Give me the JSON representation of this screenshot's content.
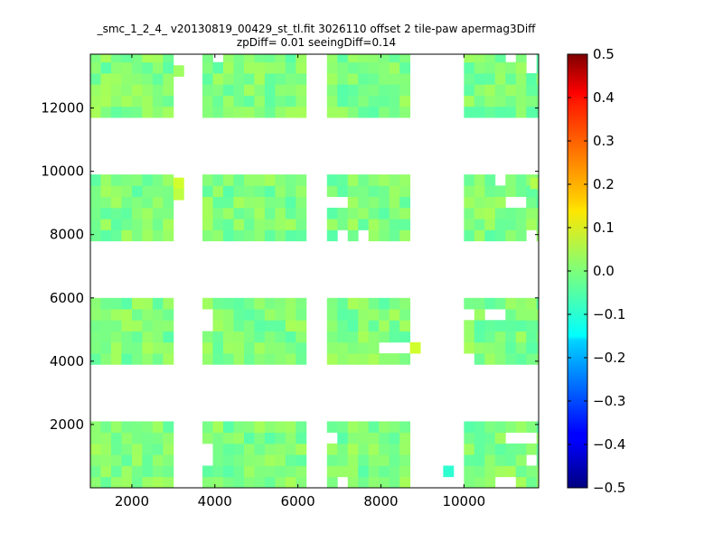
{
  "chart_data": {
    "type": "heatmap",
    "title_line1": "_smc_1_2_4_ v20130819_00429_st_tl.fit 3026110 offset 2 tile-paw apermag3Diff",
    "title_line2": "zpDiff= 0.01 seeingDiff=0.14",
    "xlabel": "",
    "ylabel": "",
    "xlim": [
      1000,
      11800
    ],
    "ylim": [
      0,
      13700
    ],
    "x_ticks": [
      2000,
      4000,
      6000,
      8000,
      10000
    ],
    "y_ticks": [
      2000,
      4000,
      6000,
      8000,
      10000,
      12000
    ],
    "colorbar": {
      "colormap": "jet",
      "range": [
        -0.5,
        0.5
      ],
      "ticks": [
        0.5,
        0.4,
        0.3,
        0.2,
        0.1,
        0.0,
        -0.1,
        -0.2,
        -0.3,
        -0.4,
        -0.5
      ],
      "tick_labels": [
        "0.5",
        "0.4",
        "0.3",
        "0.2",
        "0.1",
        "0.0",
        "−0.1",
        "−0.2",
        "−0.3",
        "−0.4",
        "−0.5"
      ]
    },
    "grid": false,
    "legend": "none",
    "cell_size": [
      250,
      350
    ],
    "blocks": [
      {
        "x": [
          1000,
          3000
        ],
        "y": [
          0,
          2100
        ]
      },
      {
        "x": [
          3700,
          6000
        ],
        "y": [
          0,
          2100
        ]
      },
      {
        "x": [
          6700,
          8700
        ],
        "y": [
          0,
          2100
        ]
      },
      {
        "x": [
          10000,
          11800
        ],
        "y": [
          0,
          2100
        ]
      },
      {
        "x": [
          1000,
          3000
        ],
        "y": [
          3900,
          6000
        ]
      },
      {
        "x": [
          3700,
          6000
        ],
        "y": [
          3900,
          6000
        ]
      },
      {
        "x": [
          6700,
          8700
        ],
        "y": [
          3900,
          6000
        ]
      },
      {
        "x": [
          10000,
          11800
        ],
        "y": [
          3900,
          6000
        ]
      },
      {
        "x": [
          1000,
          3000
        ],
        "y": [
          7800,
          9900
        ]
      },
      {
        "x": [
          3700,
          6000
        ],
        "y": [
          7800,
          9900
        ]
      },
      {
        "x": [
          6700,
          8700
        ],
        "y": [
          7800,
          9900
        ]
      },
      {
        "x": [
          10000,
          11800
        ],
        "y": [
          7800,
          9900
        ]
      },
      {
        "x": [
          1000,
          3000
        ],
        "y": [
          11700,
          13700
        ]
      },
      {
        "x": [
          3700,
          6000
        ],
        "y": [
          11700,
          13700
        ]
      },
      {
        "x": [
          6700,
          8700
        ],
        "y": [
          11700,
          13700
        ]
      },
      {
        "x": [
          10000,
          11800
        ],
        "y": [
          11700,
          13700
        ]
      }
    ],
    "extra_cells": [
      {
        "x": 3000,
        "y": 9450,
        "value": 0.08
      },
      {
        "x": 3000,
        "y": 9100,
        "value": 0.06
      },
      {
        "x": 3000,
        "y": 13000,
        "value": 0.03
      },
      {
        "x": 8700,
        "y": 4250,
        "value": 0.08
      },
      {
        "x": 9500,
        "y": 350,
        "value": -0.08
      },
      {
        "x": 11600,
        "y": 9450,
        "value": 0.05
      }
    ],
    "missing_cells": [
      {
        "x": 4000,
        "y": 13350
      },
      {
        "x": 11000,
        "y": 13350
      },
      {
        "x": 11600,
        "y": 13350
      },
      {
        "x": 11600,
        "y": 13000
      },
      {
        "x": 10750,
        "y": 9450
      },
      {
        "x": 11000,
        "y": 8750
      },
      {
        "x": 11250,
        "y": 8750
      },
      {
        "x": 6700,
        "y": 8750
      },
      {
        "x": 7000,
        "y": 8750
      },
      {
        "x": 7000,
        "y": 7800
      },
      {
        "x": 7500,
        "y": 7800
      },
      {
        "x": 11600,
        "y": 7800
      },
      {
        "x": 3750,
        "y": 5300
      },
      {
        "x": 3750,
        "y": 4950
      },
      {
        "x": 10000,
        "y": 5300
      },
      {
        "x": 10500,
        "y": 5300
      },
      {
        "x": 10750,
        "y": 5300
      },
      {
        "x": 8300,
        "y": 4250
      },
      {
        "x": 8500,
        "y": 4250
      },
      {
        "x": 8000,
        "y": 4250
      },
      {
        "x": 10000,
        "y": 3900
      },
      {
        "x": 11100,
        "y": 1400
      },
      {
        "x": 11300,
        "y": 1400
      },
      {
        "x": 11550,
        "y": 1400
      },
      {
        "x": 11550,
        "y": 700
      },
      {
        "x": 3750,
        "y": 1050
      },
      {
        "x": 3750,
        "y": 700
      },
      {
        "x": 6700,
        "y": 1400
      },
      {
        "x": 7000,
        "y": 0
      },
      {
        "x": 10750,
        "y": 0
      },
      {
        "x": 11000,
        "y": 0
      }
    ]
  }
}
